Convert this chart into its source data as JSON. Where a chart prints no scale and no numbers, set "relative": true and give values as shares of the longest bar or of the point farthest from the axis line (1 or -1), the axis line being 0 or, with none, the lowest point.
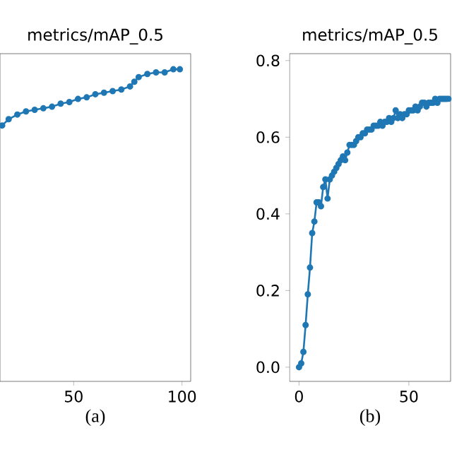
{
  "chart_data": [
    {
      "type": "line",
      "title": "metrics/mAP_0.5",
      "xlabel": "(a)",
      "relative": true,
      "tick_labels": "x",
      "marker": "circle",
      "line_style": "solid",
      "xlim": [
        16,
        104
      ],
      "xticks": [
        50,
        100
      ],
      "series": [
        {
          "color": "#1f77b4",
          "x": [
            17,
            20,
            24,
            28,
            32,
            36,
            40,
            44,
            48,
            52,
            56,
            60,
            64,
            68,
            72,
            76,
            78,
            80,
            84,
            88,
            92,
            96,
            99
          ],
          "values": [
            0.82,
            0.84,
            0.855,
            0.865,
            0.87,
            0.875,
            0.88,
            0.89,
            0.895,
            0.905,
            0.91,
            0.92,
            0.925,
            0.93,
            0.935,
            0.945,
            0.96,
            0.975,
            0.985,
            0.99,
            0.99,
            1.0,
            1.0
          ]
        }
      ]
    },
    {
      "type": "line",
      "title": "metrics/mAP_0.5",
      "xlabel": "(b)",
      "marker": "circle",
      "line_style": "solid",
      "xlim": [
        -4.3,
        69
      ],
      "xticks": [
        0,
        50
      ],
      "ylim": [
        -0.037,
        0.818
      ],
      "yticks": [
        {
          "value": 0,
          "label": "0.0"
        },
        0.2,
        0.4,
        0.6,
        0.8
      ],
      "series": [
        {
          "color": "#1f77b4",
          "x": [
            0,
            1,
            2,
            3,
            4,
            5,
            6,
            7,
            8,
            9,
            10,
            11,
            12,
            13,
            14,
            15,
            16,
            17,
            18,
            19,
            20,
            21,
            22,
            23,
            24,
            25,
            26,
            27,
            28,
            29,
            30,
            31,
            32,
            33,
            34,
            35,
            36,
            37,
            38,
            39,
            40,
            41,
            42,
            43,
            44,
            45,
            46,
            47,
            48,
            49,
            50,
            51,
            52,
            53,
            54,
            55,
            56,
            57,
            58,
            59,
            60,
            61,
            62,
            63,
            64,
            65,
            66,
            67,
            68
          ],
          "values": [
            0.0,
            0.01,
            0.04,
            0.11,
            0.19,
            0.26,
            0.35,
            0.38,
            0.43,
            0.43,
            0.42,
            0.47,
            0.49,
            0.44,
            0.49,
            0.5,
            0.51,
            0.52,
            0.53,
            0.54,
            0.55,
            0.54,
            0.56,
            0.58,
            0.58,
            0.58,
            0.59,
            0.6,
            0.6,
            0.61,
            0.61,
            0.62,
            0.62,
            0.62,
            0.63,
            0.63,
            0.63,
            0.64,
            0.63,
            0.64,
            0.64,
            0.65,
            0.64,
            0.65,
            0.67,
            0.65,
            0.66,
            0.65,
            0.66,
            0.66,
            0.67,
            0.67,
            0.67,
            0.68,
            0.67,
            0.68,
            0.69,
            0.69,
            0.68,
            0.69,
            0.69,
            0.69,
            0.7,
            0.69,
            0.7,
            0.7,
            0.7,
            0.7,
            0.7
          ]
        }
      ]
    }
  ]
}
